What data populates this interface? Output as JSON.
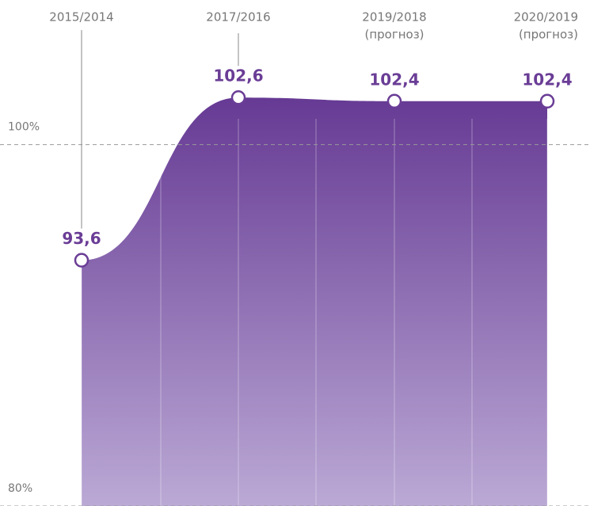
{
  "chart_data": {
    "type": "area",
    "categories": [
      "2015/2014",
      "2017/2016",
      "2019/2018",
      "2020/2019"
    ],
    "category_notes": [
      null,
      null,
      "(прогноз)",
      "(прогноз)"
    ],
    "values": [
      93.6,
      102.6,
      102.4,
      102.4
    ],
    "value_labels": [
      "93,6",
      "102,6",
      "102,4",
      "102,4"
    ],
    "color": "#6a3d96",
    "ylim": [
      80,
      108
    ],
    "yticks": [
      {
        "value": 80,
        "label": "80%"
      },
      {
        "value": 100,
        "label": "100%"
      }
    ],
    "grid": true
  }
}
